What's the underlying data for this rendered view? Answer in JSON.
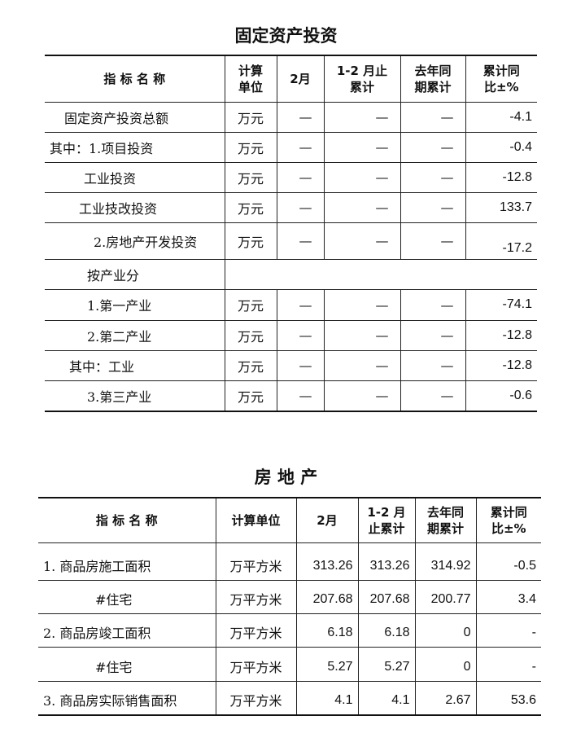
{
  "fixed_investment": {
    "title": "固定资产投资",
    "headers": [
      "指 标 名 称",
      "计算\n单位",
      "2月",
      "1-2 月止\n累计",
      "去年同\n期累计",
      "累计同\n比±%"
    ],
    "rows": [
      {
        "name": "固定资产投资总额",
        "unit": "万元",
        "feb": "—",
        "ytd": "—",
        "last_year": "—",
        "yoy": "-4.1"
      },
      {
        "name": "其中：1.项目投资",
        "unit": "万元",
        "feb": "—",
        "ytd": "—",
        "last_year": "—",
        "yoy": "-0.4"
      },
      {
        "name": "工业投资",
        "unit": "万元",
        "feb": "—",
        "ytd": "—",
        "last_year": "—",
        "yoy": "-12.8"
      },
      {
        "name": "工业技改投资",
        "unit": "万元",
        "feb": "—",
        "ytd": "—",
        "last_year": "—",
        "yoy": "133.7"
      },
      {
        "name": "2.房地产开发投资",
        "unit": "万元",
        "feb": "—",
        "ytd": "—",
        "last_year": "—",
        "yoy": "-17.2"
      },
      {
        "name": "按产业分"
      },
      {
        "name": "1.第一产业",
        "unit": "万元",
        "feb": "—",
        "ytd": "—",
        "last_year": "—",
        "yoy": "-74.1"
      },
      {
        "name": "2.第二产业",
        "unit": "万元",
        "feb": "—",
        "ytd": "—",
        "last_year": "—",
        "yoy": "-12.8"
      },
      {
        "name": "其中：工业",
        "unit": "万元",
        "feb": "—",
        "ytd": "—",
        "last_year": "—",
        "yoy": "-12.8"
      },
      {
        "name": "3.第三产业",
        "unit": "万元",
        "feb": "—",
        "ytd": "—",
        "last_year": "—",
        "yoy": "-0.6"
      }
    ]
  },
  "real_estate": {
    "title": "房 地 产",
    "headers": [
      "指 标 名 称",
      "计算单位",
      "2月",
      "1-2 月\n止累计",
      "去年同\n期累计",
      "累计同\n比±%"
    ],
    "rows": [
      {
        "name": "1. 商品房施工面积",
        "unit": "万平方米",
        "feb": "313.26",
        "ytd": "313.26",
        "last_year": "314.92",
        "yoy": "-0.5"
      },
      {
        "name": "#住宅",
        "unit": "万平方米",
        "feb": "207.68",
        "ytd": "207.68",
        "last_year": "200.77",
        "yoy": "3.4"
      },
      {
        "name": "2. 商品房竣工面积",
        "unit": "万平方米",
        "feb": "6.18",
        "ytd": "6.18",
        "last_year": "0",
        "yoy": "-"
      },
      {
        "name": "#住宅",
        "unit": "万平方米",
        "feb": "5.27",
        "ytd": "5.27",
        "last_year": "0",
        "yoy": "-"
      },
      {
        "name": "3. 商品房实际销售面积",
        "unit": "万平方米",
        "feb": "4.1",
        "ytd": "4.1",
        "last_year": "2.67",
        "yoy": "53.6"
      }
    ]
  }
}
